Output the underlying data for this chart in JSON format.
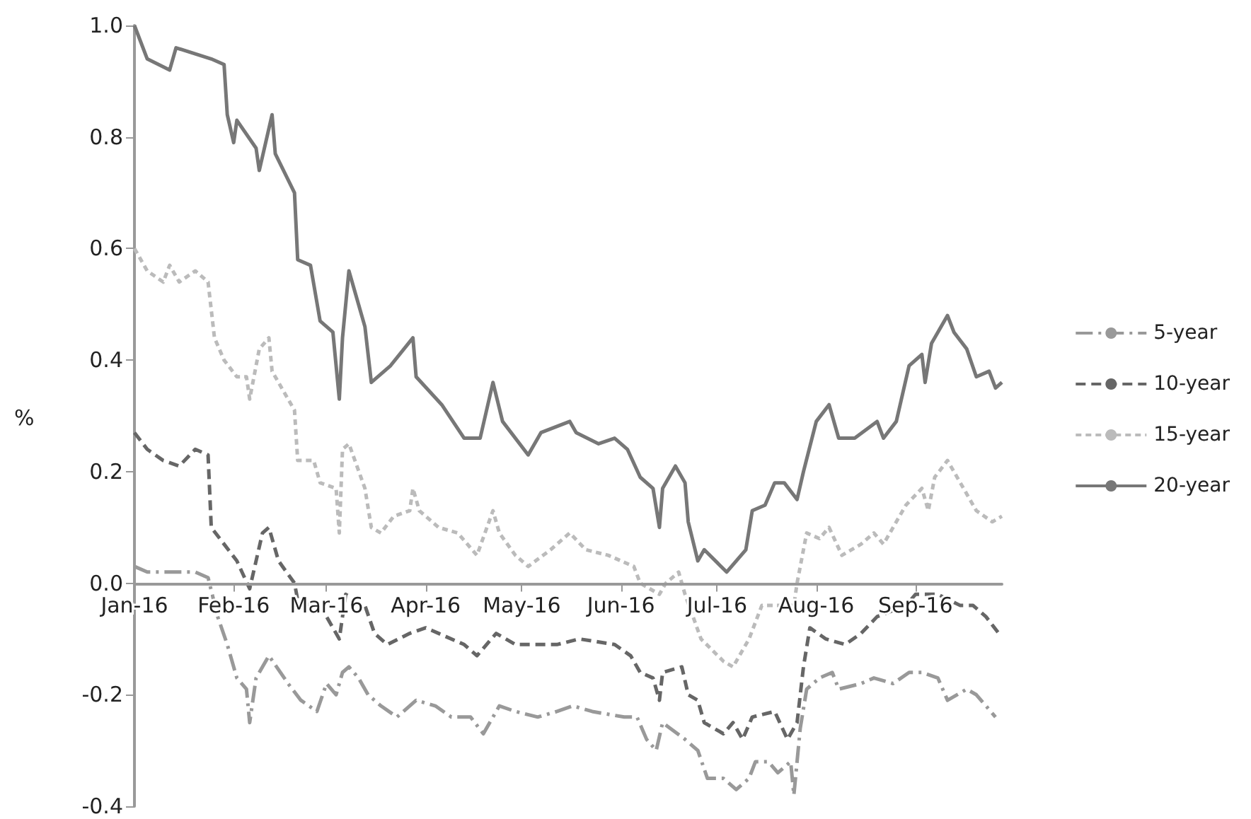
{
  "chart_data": {
    "type": "line",
    "ylabel": "%",
    "xlim": [
      "2016-01-01",
      "2016-09-28"
    ],
    "xticks": [
      {
        "value": "2016-01-01",
        "label": "Jan-16"
      },
      {
        "value": "2016-02-01",
        "label": "Feb-16"
      },
      {
        "value": "2016-03-01",
        "label": "Mar-16"
      },
      {
        "value": "2016-04-01",
        "label": "Apr-16"
      },
      {
        "value": "2016-05-01",
        "label": "May-16"
      },
      {
        "value": "2016-06-01",
        "label": "Jun-16"
      },
      {
        "value": "2016-07-01",
        "label": "Jul-16"
      },
      {
        "value": "2016-08-01",
        "label": "Aug-16"
      },
      {
        "value": "2016-09-01",
        "label": "Sep-16"
      }
    ],
    "ylim": [
      -0.4,
      1.0
    ],
    "yticks": [
      {
        "value": -0.4,
        "label": "-0.4"
      },
      {
        "value": -0.2,
        "label": "-0.2"
      },
      {
        "value": 0,
        "label": "0.0"
      },
      {
        "value": 0.2,
        "label": "0.2"
      },
      {
        "value": 0.4,
        "label": "0.4"
      },
      {
        "value": 0.6,
        "label": "0.6"
      },
      {
        "value": 0.8,
        "label": "0.8"
      },
      {
        "value": 1.0,
        "label": "1.0"
      }
    ],
    "grid": false,
    "legend": "right",
    "marker": "none",
    "series": [
      {
        "name": "5-year",
        "color": "#999999",
        "line_style": "dashdot",
        "x": [
          "2016-01-01",
          "2016-01-05",
          "2016-01-20",
          "2016-01-24",
          "2016-01-27",
          "2016-01-30",
          "2016-02-02",
          "2016-02-05",
          "2016-02-06",
          "2016-02-08",
          "2016-02-12",
          "2016-02-18",
          "2016-02-22",
          "2016-02-27",
          "2016-03-01",
          "2016-03-04",
          "2016-03-06",
          "2016-03-08",
          "2016-03-11",
          "2016-03-14",
          "2016-03-18",
          "2016-03-23",
          "2016-03-29",
          "2016-04-04",
          "2016-04-09",
          "2016-04-15",
          "2016-04-19",
          "2016-04-24",
          "2016-04-29",
          "2016-05-06",
          "2016-05-12",
          "2016-05-17",
          "2016-05-23",
          "2016-06-02",
          "2016-06-06",
          "2016-06-09",
          "2016-06-12",
          "2016-06-14",
          "2016-06-21",
          "2016-06-25",
          "2016-06-28",
          "2016-07-03",
          "2016-07-07",
          "2016-07-11",
          "2016-07-13",
          "2016-07-17",
          "2016-07-20",
          "2016-07-24",
          "2016-07-25",
          "2016-07-27",
          "2016-07-29",
          "2016-08-02",
          "2016-08-06",
          "2016-08-08",
          "2016-08-15",
          "2016-08-19",
          "2016-08-25",
          "2016-08-30",
          "2016-09-03",
          "2016-09-08",
          "2016-09-11",
          "2016-09-17",
          "2016-09-20",
          "2016-09-23",
          "2016-09-26"
        ],
        "values": [
          0.03,
          0.02,
          0.02,
          0.01,
          -0.06,
          -0.11,
          -0.17,
          -0.19,
          -0.25,
          -0.17,
          -0.13,
          -0.18,
          -0.21,
          -0.23,
          -0.18,
          -0.2,
          -0.16,
          -0.15,
          -0.17,
          -0.2,
          -0.22,
          -0.24,
          -0.21,
          -0.22,
          -0.24,
          -0.24,
          -0.27,
          -0.22,
          -0.23,
          -0.24,
          -0.23,
          -0.22,
          -0.23,
          -0.24,
          -0.24,
          -0.28,
          -0.3,
          -0.25,
          -0.28,
          -0.3,
          -0.35,
          -0.35,
          -0.37,
          -0.35,
          -0.32,
          -0.32,
          -0.34,
          -0.32,
          -0.38,
          -0.26,
          -0.19,
          -0.17,
          -0.16,
          -0.19,
          -0.18,
          -0.17,
          -0.18,
          -0.16,
          -0.16,
          -0.17,
          -0.21,
          -0.19,
          -0.2,
          -0.22,
          -0.24
        ]
      },
      {
        "name": "10-year",
        "color": "#666666",
        "line_style": "dashed",
        "x": [
          "2016-01-01",
          "2016-01-05",
          "2016-01-10",
          "2016-01-15",
          "2016-01-20",
          "2016-01-24",
          "2016-01-25",
          "2016-01-29",
          "2016-02-02",
          "2016-02-06",
          "2016-02-10",
          "2016-02-12",
          "2016-02-15",
          "2016-02-20",
          "2016-02-21",
          "2016-02-25",
          "2016-02-29",
          "2016-03-05",
          "2016-03-07",
          "2016-03-13",
          "2016-03-16",
          "2016-03-20",
          "2016-03-27",
          "2016-04-01",
          "2016-04-13",
          "2016-04-17",
          "2016-04-23",
          "2016-04-29",
          "2016-05-04",
          "2016-05-12",
          "2016-05-19",
          "2016-05-30",
          "2016-06-04",
          "2016-06-07",
          "2016-06-11",
          "2016-06-13",
          "2016-06-14",
          "2016-06-20",
          "2016-06-22",
          "2016-06-25",
          "2016-06-27",
          "2016-07-03",
          "2016-07-06",
          "2016-07-09",
          "2016-07-12",
          "2016-07-19",
          "2016-07-23",
          "2016-07-26",
          "2016-07-28",
          "2016-07-30",
          "2016-08-04",
          "2016-08-10",
          "2016-08-15",
          "2016-08-20",
          "2016-08-29",
          "2016-09-01",
          "2016-09-08",
          "2016-09-15",
          "2016-09-19",
          "2016-09-23",
          "2016-09-27"
        ],
        "values": [
          0.27,
          0.24,
          0.22,
          0.21,
          0.24,
          0.23,
          0.1,
          0.07,
          0.04,
          -0.01,
          0.09,
          0.1,
          0.04,
          0.0,
          -0.03,
          -0.04,
          -0.05,
          -0.1,
          -0.02,
          -0.04,
          -0.09,
          -0.11,
          -0.09,
          -0.08,
          -0.11,
          -0.13,
          -0.09,
          -0.11,
          -0.11,
          -0.11,
          -0.1,
          -0.11,
          -0.13,
          -0.16,
          -0.17,
          -0.21,
          -0.16,
          -0.15,
          -0.2,
          -0.21,
          -0.25,
          -0.27,
          -0.25,
          -0.28,
          -0.24,
          -0.23,
          -0.28,
          -0.25,
          -0.15,
          -0.08,
          -0.1,
          -0.11,
          -0.09,
          -0.06,
          -0.04,
          -0.02,
          -0.02,
          -0.04,
          -0.04,
          -0.06,
          -0.09
        ]
      },
      {
        "name": "15-year",
        "color": "#bbbbbb",
        "line_style": "dotted",
        "x": [
          "2016-01-01",
          "2016-01-05",
          "2016-01-10",
          "2016-01-12",
          "2016-01-15",
          "2016-01-20",
          "2016-01-24",
          "2016-01-26",
          "2016-01-29",
          "2016-02-02",
          "2016-02-05",
          "2016-02-06",
          "2016-02-09",
          "2016-02-12",
          "2016-02-13",
          "2016-02-20",
          "2016-02-21",
          "2016-02-26",
          "2016-02-28",
          "2016-03-04",
          "2016-03-05",
          "2016-03-06",
          "2016-03-08",
          "2016-03-13",
          "2016-03-15",
          "2016-03-18",
          "2016-03-22",
          "2016-03-27",
          "2016-03-28",
          "2016-03-30",
          "2016-04-05",
          "2016-04-11",
          "2016-04-17",
          "2016-04-22",
          "2016-04-24",
          "2016-04-29",
          "2016-05-03",
          "2016-05-10",
          "2016-05-16",
          "2016-05-21",
          "2016-05-28",
          "2016-06-05",
          "2016-06-07",
          "2016-06-13",
          "2016-06-15",
          "2016-06-19",
          "2016-06-21",
          "2016-06-26",
          "2016-07-03",
          "2016-07-06",
          "2016-07-11",
          "2016-07-15",
          "2016-07-25",
          "2016-07-26",
          "2016-07-29",
          "2016-08-02",
          "2016-08-05",
          "2016-08-09",
          "2016-08-15",
          "2016-08-19",
          "2016-08-22",
          "2016-08-29",
          "2016-09-03",
          "2016-09-05",
          "2016-09-07",
          "2016-09-11",
          "2016-09-16",
          "2016-09-20",
          "2016-09-25",
          "2016-09-28"
        ],
        "values": [
          0.6,
          0.56,
          0.54,
          0.57,
          0.54,
          0.56,
          0.54,
          0.44,
          0.4,
          0.37,
          0.37,
          0.33,
          0.42,
          0.44,
          0.38,
          0.31,
          0.22,
          0.22,
          0.18,
          0.17,
          0.09,
          0.24,
          0.25,
          0.17,
          0.1,
          0.09,
          0.12,
          0.13,
          0.17,
          0.13,
          0.1,
          0.09,
          0.05,
          0.13,
          0.09,
          0.05,
          0.03,
          0.06,
          0.09,
          0.06,
          0.05,
          0.03,
          0.0,
          -0.02,
          0.0,
          0.02,
          -0.02,
          -0.1,
          -0.14,
          -0.15,
          -0.1,
          -0.04,
          -0.04,
          0.0,
          0.09,
          0.08,
          0.1,
          0.05,
          0.07,
          0.09,
          0.07,
          0.14,
          0.17,
          0.13,
          0.19,
          0.22,
          0.17,
          0.13,
          0.11,
          0.12
        ]
      },
      {
        "name": "20-year",
        "color": "#777777",
        "line_style": "solid",
        "x": [
          "2016-01-01",
          "2016-01-05",
          "2016-01-12",
          "2016-01-14",
          "2016-01-25",
          "2016-01-29",
          "2016-01-30",
          "2016-02-01",
          "2016-02-02",
          "2016-02-08",
          "2016-02-09",
          "2016-02-13",
          "2016-02-14",
          "2016-02-20",
          "2016-02-21",
          "2016-02-25",
          "2016-02-28",
          "2016-03-03",
          "2016-03-05",
          "2016-03-06",
          "2016-03-08",
          "2016-03-13",
          "2016-03-15",
          "2016-03-21",
          "2016-03-28",
          "2016-03-29",
          "2016-04-06",
          "2016-04-13",
          "2016-04-18",
          "2016-04-22",
          "2016-04-25",
          "2016-05-03",
          "2016-05-07",
          "2016-05-16",
          "2016-05-18",
          "2016-05-25",
          "2016-05-30",
          "2016-06-03",
          "2016-06-07",
          "2016-06-11",
          "2016-06-13",
          "2016-06-14",
          "2016-06-18",
          "2016-06-21",
          "2016-06-22",
          "2016-06-25",
          "2016-06-27",
          "2016-07-04",
          "2016-07-10",
          "2016-07-12",
          "2016-07-16",
          "2016-07-19",
          "2016-07-22",
          "2016-07-26",
          "2016-07-28",
          "2016-08-01",
          "2016-08-05",
          "2016-08-08",
          "2016-08-13",
          "2016-08-20",
          "2016-08-22",
          "2016-08-26",
          "2016-08-30",
          "2016-09-03",
          "2016-09-04",
          "2016-09-06",
          "2016-09-11",
          "2016-09-13",
          "2016-09-17",
          "2016-09-20",
          "2016-09-24",
          "2016-09-26",
          "2016-09-28"
        ],
        "values": [
          1.0,
          0.94,
          0.92,
          0.96,
          0.94,
          0.93,
          0.84,
          0.79,
          0.83,
          0.78,
          0.74,
          0.84,
          0.77,
          0.7,
          0.58,
          0.57,
          0.47,
          0.45,
          0.33,
          0.44,
          0.56,
          0.46,
          0.36,
          0.39,
          0.44,
          0.37,
          0.32,
          0.26,
          0.26,
          0.36,
          0.29,
          0.23,
          0.27,
          0.29,
          0.27,
          0.25,
          0.26,
          0.24,
          0.19,
          0.17,
          0.1,
          0.17,
          0.21,
          0.18,
          0.11,
          0.04,
          0.06,
          0.02,
          0.06,
          0.13,
          0.14,
          0.18,
          0.18,
          0.15,
          0.2,
          0.29,
          0.32,
          0.26,
          0.26,
          0.29,
          0.26,
          0.29,
          0.39,
          0.41,
          0.36,
          0.43,
          0.48,
          0.45,
          0.42,
          0.37,
          0.38,
          0.35,
          0.36
        ]
      }
    ]
  }
}
